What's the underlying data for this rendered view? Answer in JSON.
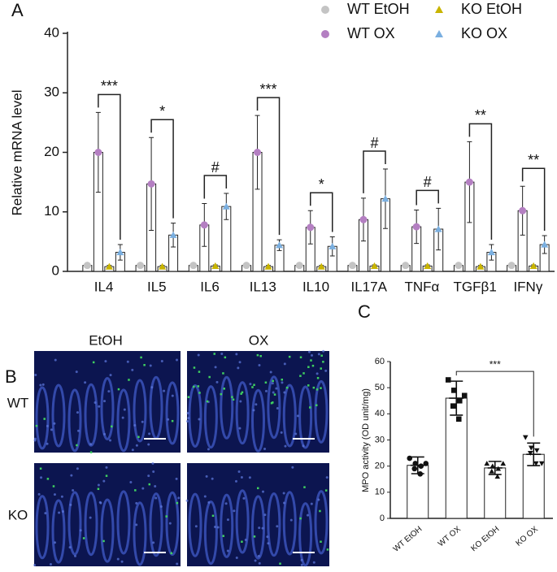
{
  "chart_data": [
    {
      "type": "bar",
      "panel": "A",
      "ylabel": "Relative mRNA level",
      "categories": [
        "IL4",
        "IL5",
        "IL6",
        "IL13",
        "IL10",
        "IL17A",
        "TNFα",
        "TGFβ1",
        "IFNγ"
      ],
      "series": [
        {
          "name": "WT EtOH",
          "color": "#c4c4c4",
          "marker": "circle",
          "values": [
            1,
            1,
            1,
            1,
            1,
            1,
            1,
            1,
            1
          ],
          "errors": [
            0.3,
            0.3,
            0.3,
            0.3,
            0.3,
            0.3,
            0.3,
            0.3,
            0.3
          ]
        },
        {
          "name": "WT OX",
          "color": "#b47fc2",
          "marker": "circle",
          "values": [
            20,
            14.7,
            7.8,
            20,
            7.4,
            8.7,
            7.5,
            15,
            10.2
          ],
          "errors": [
            6.7,
            7.8,
            3.6,
            6.2,
            2.8,
            3.6,
            2.8,
            6.8,
            4.1
          ]
        },
        {
          "name": "KO EtOH",
          "color": "#c8b400",
          "marker": "triangle",
          "values": [
            0.8,
            0.8,
            0.9,
            0.8,
            0.8,
            0.9,
            0.9,
            0.8,
            0.9
          ],
          "errors": [
            0.2,
            0.2,
            0.2,
            0.2,
            0.2,
            0.2,
            0.2,
            0.2,
            0.2
          ]
        },
        {
          "name": "KO OX",
          "color": "#7aafe0",
          "marker": "triangle",
          "values": [
            3.2,
            6.1,
            10.9,
            4.4,
            4.2,
            12.2,
            7.1,
            3.2,
            4.5
          ],
          "errors": [
            1.3,
            2,
            2.2,
            0.9,
            1.6,
            5,
            3.5,
            1.3,
            1.5
          ]
        }
      ],
      "significance": [
        "***",
        "*",
        "#",
        "***",
        "*",
        "#",
        "#",
        "**",
        "**"
      ],
      "ylim": [
        0,
        40
      ],
      "yticks": [
        0,
        10,
        20,
        30,
        40
      ]
    },
    {
      "type": "bar",
      "panel": "C",
      "ylabel": "MPO activity (OD unit/mg)",
      "categories": [
        "WT EtOH",
        "WT OX",
        "KO EtOH",
        "KO OX"
      ],
      "values": [
        20.3,
        46,
        19.3,
        24.5
      ],
      "errors": [
        3.2,
        6.5,
        2.5,
        4.3
      ],
      "points": [
        [
          23,
          21,
          20,
          19,
          17,
          21
        ],
        [
          53,
          49,
          45,
          43,
          38,
          47
        ],
        [
          21,
          20,
          19,
          18,
          16,
          21
        ],
        [
          31,
          27,
          26,
          25,
          21,
          21
        ]
      ],
      "markers": [
        "circle",
        "square",
        "triangle",
        "triangle-down"
      ],
      "color": "#111111",
      "annotation": "***",
      "ylim": [
        0,
        60
      ],
      "yticks": [
        0,
        10,
        20,
        30,
        40,
        50,
        60
      ]
    }
  ],
  "micrographs": {
    "panel": "B",
    "columns": [
      "EtOH",
      "OX"
    ],
    "rows": [
      "WT",
      "KO"
    ]
  }
}
